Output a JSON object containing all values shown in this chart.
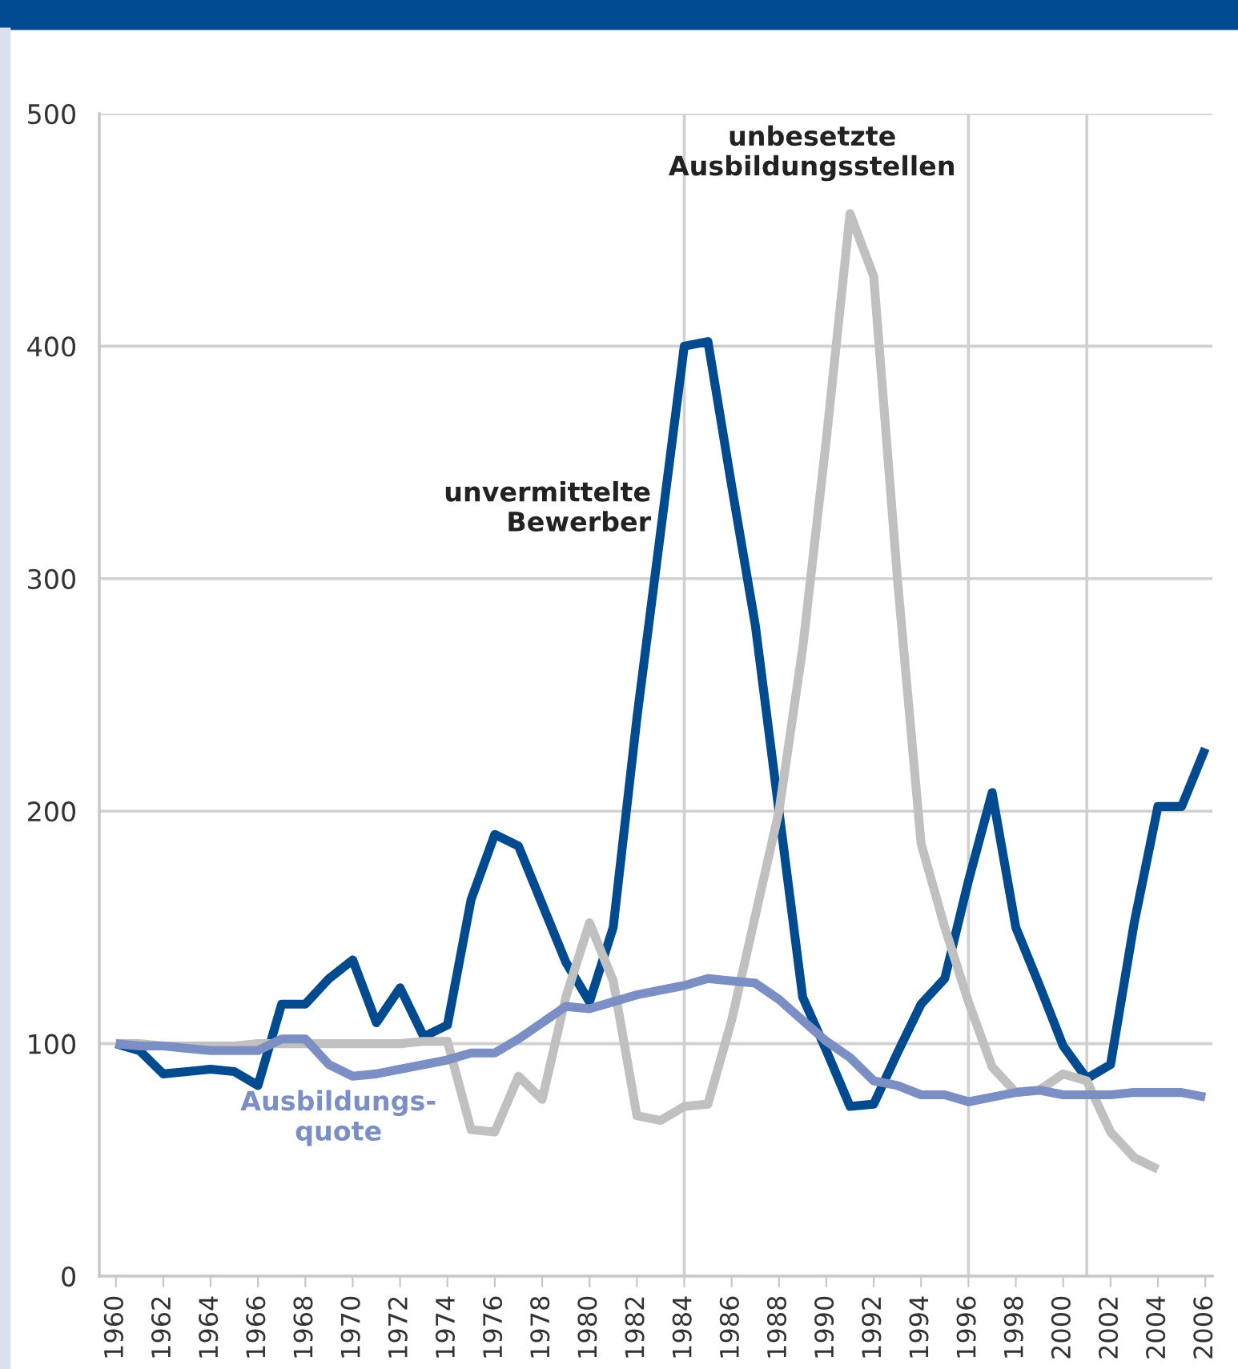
{
  "chart_data": {
    "type": "line",
    "x": [
      1960,
      1961,
      1962,
      1963,
      1964,
      1965,
      1966,
      1967,
      1968,
      1969,
      1970,
      1971,
      1972,
      1973,
      1974,
      1975,
      1976,
      1977,
      1978,
      1979,
      1980,
      1981,
      1982,
      1983,
      1984,
      1985,
      1986,
      1987,
      1988,
      1989,
      1990,
      1991,
      1992,
      1993,
      1994,
      1995,
      1996,
      1997,
      1998,
      1999,
      2000,
      2001,
      2002,
      2003,
      2004,
      2005,
      2006
    ],
    "series": [
      {
        "name": "unvermittelte\nBewerber",
        "color": "#004a8f",
        "values": [
          100,
          97,
          87,
          88,
          89,
          88,
          82,
          117,
          117,
          128,
          136,
          109,
          124,
          103,
          108,
          162,
          190,
          185,
          160,
          135,
          118,
          150,
          240,
          320,
          400,
          402,
          340,
          280,
          200,
          120,
          97,
          73,
          74,
          96,
          117,
          128,
          170,
          208,
          150,
          125,
          99,
          85,
          91,
          152,
          202,
          202,
          227
        ]
      },
      {
        "name": "unbesetzte\nAusbildungsstellen",
        "color": "#c0c0c0",
        "values": [
          100,
          100,
          99,
          99,
          99,
          99,
          100,
          100,
          100,
          100,
          100,
          100,
          100,
          101,
          101,
          63,
          62,
          86,
          76,
          120,
          152,
          127,
          69,
          67,
          73,
          74,
          110,
          155,
          200,
          270,
          360,
          457,
          430,
          300,
          186,
          150,
          118,
          90,
          79,
          80,
          87,
          84,
          62,
          51,
          46,
          null,
          null
        ]
      },
      {
        "name": "Ausbildungs-\nquote",
        "color": "#7b8fc4",
        "values": [
          100,
          99,
          99,
          98,
          97,
          97,
          97,
          102,
          102,
          91,
          86,
          87,
          89,
          91,
          93,
          96,
          96,
          102,
          109,
          116,
          115,
          118,
          121,
          123,
          125,
          128,
          127,
          126,
          119,
          110,
          101,
          94,
          84,
          82,
          78,
          78,
          75,
          77,
          79,
          80,
          78,
          78,
          78,
          79,
          79,
          79,
          77
        ]
      }
    ],
    "xlim": [
      1959.3,
      2006.3
    ],
    "ylim": [
      0,
      500
    ],
    "xticks": [
      1960,
      1962,
      1964,
      1966,
      1968,
      1970,
      1972,
      1974,
      1976,
      1978,
      1980,
      1982,
      1984,
      1986,
      1988,
      1990,
      1992,
      1994,
      1996,
      1998,
      2000,
      2002,
      2004,
      2006
    ],
    "yticks": [
      0,
      100,
      200,
      300,
      400,
      500
    ],
    "grid": "y",
    "legend": false,
    "marker": "none",
    "line_style": "solid",
    "ref_lines": [
      {
        "axis": "x",
        "value": 1984,
        "color": "#d0d0d0"
      },
      {
        "axis": "x",
        "value": 1996,
        "color": "#d0d0d0"
      },
      {
        "axis": "x",
        "value": 2001,
        "color": "#d0d0d0"
      }
    ]
  }
}
